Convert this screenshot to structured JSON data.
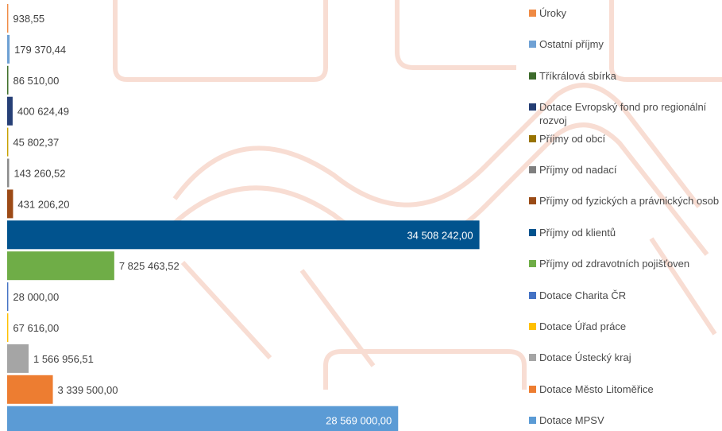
{
  "chart_data": {
    "type": "bar",
    "orientation": "horizontal",
    "xlim": [
      0,
      39000000
    ],
    "grid": false,
    "legend_position": "right",
    "bars": [
      {
        "label": "Úroky",
        "value": 938.55,
        "value_text": "938,55",
        "color": "#f08b45",
        "swatch": "#ef8a44"
      },
      {
        "label": "Ostatní příjmy",
        "value": 179370.44,
        "value_text": "179 370,44",
        "color": "#6fa1d4",
        "swatch": "#6fa1d4"
      },
      {
        "label": "Tříkrálová sbírka",
        "value": 86510.0,
        "value_text": "86 510,00",
        "color": "#3f6f2a",
        "swatch": "#3d6b2c"
      },
      {
        "label": "Dotace Evropský fond pro regionální rozvoj",
        "value": 400624.49,
        "value_text": "400 624,49",
        "color": "#263f76",
        "swatch": "#243d73"
      },
      {
        "label": "Příjmy od obcí",
        "value": 45802.37,
        "value_text": "45 802,37",
        "color": "#c7a000",
        "swatch": "#987300"
      },
      {
        "label": "Příjmy od nadací",
        "value": 143260.52,
        "value_text": "143 260,52",
        "color": "#8c8c8c",
        "swatch": "#7f7f7f"
      },
      {
        "label": "Příjmy od fyzických a právnických osob",
        "value": 431206.2,
        "value_text": "431 206,20",
        "color": "#9c4a16",
        "swatch": "#9a4b16"
      },
      {
        "label": "Příjmy od klientů",
        "value": 34508242.0,
        "value_text": "34 508 242,00",
        "color": "#01538e",
        "swatch": "#01538e"
      },
      {
        "label": "Příjmy od zdravotních pojišťoven",
        "value": 7825463.52,
        "value_text": "7 825 463,52",
        "color": "#6fad47",
        "swatch": "#6fad47"
      },
      {
        "label": "Dotace Charita ČR",
        "value": 28000.0,
        "value_text": "28 000,00",
        "color": "#4472c4",
        "swatch": "#4472c4"
      },
      {
        "label": "Dotace Úřad práce",
        "value": 67616.0,
        "value_text": "67 616,00",
        "color": "#ffc000",
        "swatch": "#ffc000"
      },
      {
        "label": "Dotace Ústecký kraj",
        "value": 1566956.51,
        "value_text": "1 566 956,51",
        "color": "#a5a5a5",
        "swatch": "#a5a5a5"
      },
      {
        "label": "Dotace Město Litoměřice",
        "value": 3339500.0,
        "value_text": "3 339 500,00",
        "color": "#ed7d31",
        "swatch": "#ed7d31"
      },
      {
        "label": "Dotace MPSV",
        "value": 28569000.0,
        "value_text": "28 569 000,00",
        "color": "#5b9bd5",
        "swatch": "#5b9bd5"
      }
    ]
  }
}
